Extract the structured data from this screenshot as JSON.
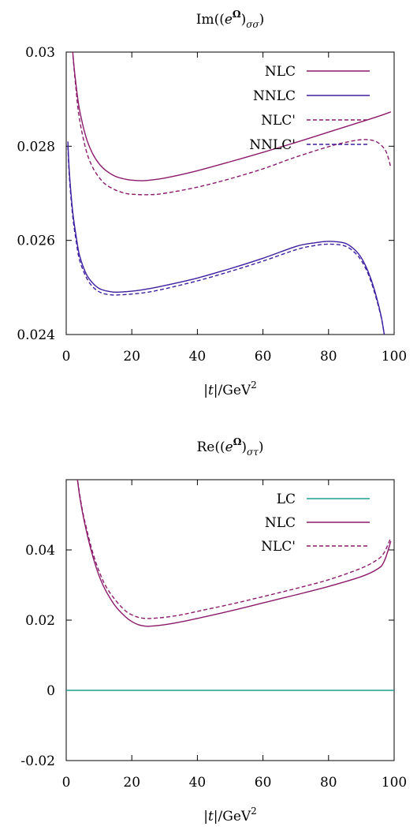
{
  "chart_data": [
    {
      "type": "line",
      "title": "Im((e^Ω)_σσ)",
      "title_parts": {
        "pre": "Im((",
        "base": "e",
        "sup": "Ω",
        "post1": ")",
        "sub": "σσ",
        "post2": ")"
      },
      "xlabel": "|t|/GeV²",
      "xlabel_parts": {
        "bar1": "|",
        "var": "t",
        "bar2": "|/GeV",
        "sup": "2"
      },
      "ylabel": "",
      "xlim": [
        0,
        100
      ],
      "ylim": [
        0.024,
        0.03
      ],
      "xticks": [
        "0",
        "20",
        "40",
        "60",
        "80",
        "100"
      ],
      "yticks": [
        "0.024",
        "0.026",
        "0.028",
        "0.03"
      ],
      "grid": false,
      "legend_position": "top-right",
      "series": [
        {
          "name": "NLC",
          "color": "#8b1a6b",
          "dash": "solid",
          "x": [
            1,
            2,
            3,
            4,
            6,
            8,
            10,
            12,
            15,
            18,
            20,
            22,
            24,
            28,
            32,
            40,
            50,
            60,
            70,
            80,
            90,
            95,
            99
          ],
          "y": [
            0.0312,
            0.03,
            0.0293,
            0.0288,
            0.0282,
            0.02785,
            0.02763,
            0.02749,
            0.02736,
            0.0273,
            0.02728,
            0.02727,
            0.02727,
            0.0273,
            0.02735,
            0.02748,
            0.02767,
            0.02787,
            0.02808,
            0.0283,
            0.02852,
            0.02863,
            0.02873
          ]
        },
        {
          "name": "NNLC",
          "color": "#3d1fa0",
          "dash": "solid",
          "x": [
            0.5,
            1,
            2,
            3,
            4,
            6,
            8,
            10,
            12,
            15,
            20,
            25,
            30,
            40,
            50,
            60,
            70,
            75,
            80,
            85,
            88,
            90,
            92,
            94,
            96,
            97
          ],
          "y": [
            0.0281,
            0.0274,
            0.0266,
            0.0261,
            0.0257,
            0.0253,
            0.0251,
            0.02498,
            0.02493,
            0.0249,
            0.02492,
            0.02497,
            0.02504,
            0.0252,
            0.0254,
            0.02562,
            0.02587,
            0.02594,
            0.02598,
            0.02594,
            0.0258,
            0.02563,
            0.02535,
            0.02495,
            0.0244,
            0.024
          ]
        },
        {
          "name": "NLC'",
          "color": "#8b1a6b",
          "dash": "dashed",
          "x": [
            1.3,
            2,
            3,
            4,
            6,
            8,
            10,
            12,
            15,
            18,
            20,
            25,
            30,
            40,
            50,
            60,
            70,
            80,
            85,
            90,
            93,
            95,
            97,
            98,
            99
          ],
          "y": [
            0.031,
            0.03,
            0.0292,
            0.0286,
            0.02793,
            0.02756,
            0.02734,
            0.02719,
            0.02707,
            0.027,
            0.02698,
            0.02697,
            0.027,
            0.02713,
            0.02731,
            0.02752,
            0.02777,
            0.02799,
            0.02808,
            0.02814,
            0.02813,
            0.02808,
            0.02795,
            0.0278,
            0.02755
          ]
        },
        {
          "name": "NNLC'",
          "color": "#3d1fa0",
          "dash": "dashed",
          "x": [
            0.5,
            1,
            2,
            3,
            4,
            6,
            8,
            10,
            12,
            15,
            20,
            25,
            30,
            40,
            50,
            60,
            70,
            75,
            80,
            85,
            88,
            90,
            92,
            94,
            96,
            97
          ],
          "y": [
            0.028,
            0.0273,
            0.0265,
            0.026,
            0.0256,
            0.02523,
            0.02502,
            0.02491,
            0.02486,
            0.02484,
            0.02486,
            0.0249,
            0.02497,
            0.02514,
            0.02534,
            0.02556,
            0.0258,
            0.02588,
            0.02592,
            0.02588,
            0.02574,
            0.02557,
            0.0253,
            0.0249,
            0.02438,
            0.024
          ]
        }
      ]
    },
    {
      "type": "line",
      "title": "Re((e^Ω)_στ)",
      "title_parts": {
        "pre": "Re((",
        "base": "e",
        "sup": "Ω",
        "post1": ")",
        "sub": "στ",
        "post2": ")"
      },
      "xlabel": "|t|/GeV²",
      "xlabel_parts": {
        "bar1": "|",
        "var": "t",
        "bar2": "|/GeV",
        "sup": "2"
      },
      "ylabel": "",
      "xlim": [
        0,
        100
      ],
      "ylim": [
        -0.02,
        0.06
      ],
      "xticks": [
        "0",
        "20",
        "40",
        "60",
        "80",
        "100"
      ],
      "yticks": [
        "-0.02",
        "0",
        "0.02",
        "0.04"
      ],
      "grid": false,
      "legend_position": "top-right",
      "series": [
        {
          "name": "LC",
          "color": "#1a9e8e",
          "dash": "solid",
          "x": [
            0,
            100
          ],
          "y": [
            0,
            0
          ]
        },
        {
          "name": "NLC",
          "color": "#8b1a6b",
          "dash": "solid",
          "x": [
            3,
            4,
            5,
            6,
            8,
            10,
            12,
            15,
            18,
            20,
            22,
            24,
            26,
            30,
            35,
            40,
            50,
            60,
            70,
            80,
            90,
            95,
            97,
            99
          ],
          "y": [
            0.063,
            0.056,
            0.0505,
            0.046,
            0.0385,
            0.0327,
            0.0285,
            0.024,
            0.021,
            0.0196,
            0.0187,
            0.0183,
            0.0183,
            0.0187,
            0.0195,
            0.0205,
            0.0226,
            0.0249,
            0.0272,
            0.0296,
            0.0324,
            0.0346,
            0.0368,
            0.0425
          ]
        },
        {
          "name": "NLC'",
          "color": "#8b1a6b",
          "dash": "dashed",
          "x": [
            3,
            4,
            5,
            6,
            8,
            10,
            12,
            15,
            18,
            20,
            22,
            24,
            26,
            30,
            35,
            40,
            50,
            60,
            70,
            80,
            90,
            95,
            97,
            99
          ],
          "y": [
            0.063,
            0.0565,
            0.051,
            0.0468,
            0.0395,
            0.034,
            0.0298,
            0.0257,
            0.0227,
            0.0215,
            0.0208,
            0.0205,
            0.0205,
            0.0208,
            0.0215,
            0.0225,
            0.0245,
            0.0267,
            0.029,
            0.0315,
            0.0348,
            0.0373,
            0.0393,
            0.0435
          ]
        }
      ]
    }
  ]
}
